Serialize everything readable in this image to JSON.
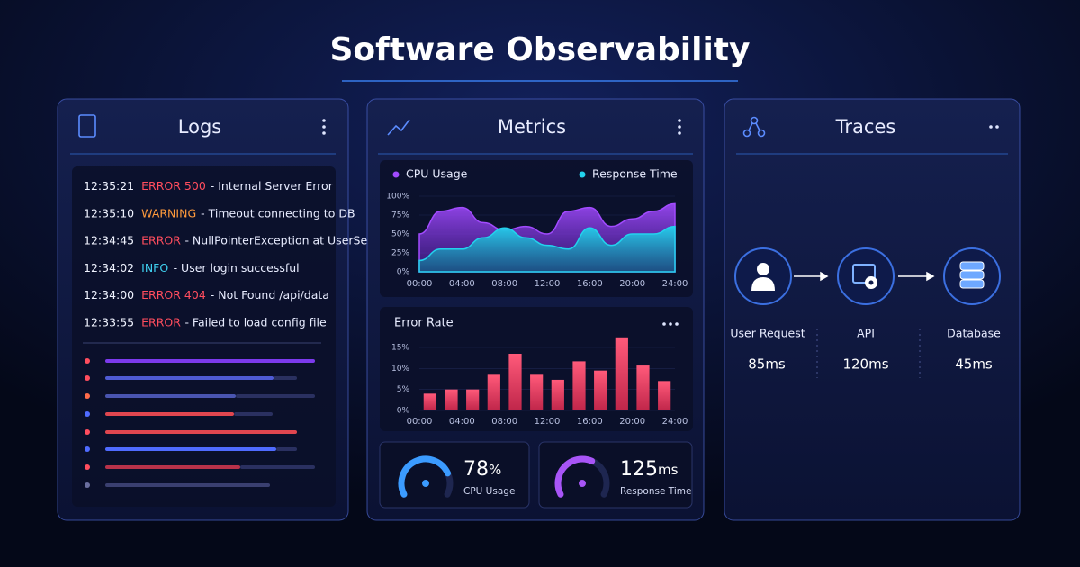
{
  "header": {
    "title": "Software Observability"
  },
  "logs": {
    "title": "Logs",
    "entries": [
      {
        "time": "12:35:21",
        "level": "ERROR 500",
        "message": "- Internal Server Error",
        "color": "#ff4d5e"
      },
      {
        "time": "12:35:10",
        "level": "WARNING",
        "message": "- Timeout connecting to DB",
        "color": "#ff9a3c"
      },
      {
        "time": "12:34:45",
        "level": "ERROR",
        "message": "- NullPointerException at UserSe",
        "color": "#ff4d5e"
      },
      {
        "time": "12:34:02",
        "level": "INFO",
        "message": "- User login successful",
        "color": "#3fd0f0"
      },
      {
        "time": "12:34:00",
        "level": "ERROR 404",
        "message": "- Not Found  /api/data",
        "color": "#ff4d5e"
      },
      {
        "time": "12:33:55",
        "level": "ERROR",
        "message": "- Failed to load config file",
        "color": "#ff4d5e"
      }
    ]
  },
  "metrics": {
    "title": "Metrics"
  },
  "chart_data": [
    {
      "type": "area",
      "x": [
        0,
        2,
        4,
        6,
        8,
        10,
        12,
        14,
        16,
        18,
        20,
        22,
        24
      ],
      "series": [
        {
          "name": "CPU Usage",
          "color": "#a24bff",
          "values": [
            50,
            80,
            85,
            65,
            55,
            60,
            50,
            80,
            85,
            60,
            70,
            80,
            90
          ]
        },
        {
          "name": "Response Time",
          "color": "#22d3ee",
          "values": [
            15,
            30,
            30,
            45,
            58,
            45,
            35,
            30,
            58,
            35,
            50,
            50,
            60
          ]
        }
      ],
      "xlim": [
        0,
        24
      ],
      "xticks": [
        {
          "value": 0,
          "label": "00:00"
        },
        {
          "value": 4,
          "label": "04:00"
        },
        {
          "value": 8,
          "label": "08:00"
        },
        {
          "value": 12,
          "label": "12:00"
        },
        {
          "value": 16,
          "label": "16:00"
        },
        {
          "value": 20,
          "label": "20:00"
        },
        {
          "value": 24,
          "label": "24:00"
        }
      ],
      "ylim": [
        0,
        100
      ],
      "yticks": [
        {
          "value": 0,
          "label": "0%"
        },
        {
          "value": 25,
          "label": "25%"
        },
        {
          "value": 50,
          "label": "50%"
        },
        {
          "value": 75,
          "label": "75%"
        },
        {
          "value": 100,
          "label": "100%"
        }
      ]
    },
    {
      "type": "bar",
      "title": "Error Rate",
      "color": "#ff4d6d",
      "categories": [
        null,
        null,
        null,
        null,
        null,
        null,
        null,
        null,
        null,
        null,
        null,
        null
      ],
      "values": [
        4,
        5,
        5,
        8.5,
        13.5,
        8.5,
        7.3,
        11.7,
        9.5,
        17.4,
        10.7,
        7
      ],
      "ylim": [
        0,
        17.5
      ],
      "yticks": [
        {
          "value": 0,
          "label": "0%"
        },
        {
          "value": 5,
          "label": "5%"
        },
        {
          "value": 10,
          "label": "10%"
        },
        {
          "value": 15,
          "label": "15%"
        }
      ],
      "xticks": [
        "00:00",
        "04:00",
        "08:00",
        "12:00",
        "16:00",
        "20:00",
        "24:00"
      ]
    }
  ],
  "gauges": [
    {
      "value": 78,
      "unit": "%",
      "label": "CPU Usage",
      "color": "#3b9bff"
    },
    {
      "value": 125,
      "unit": "ms",
      "label": "Response Time",
      "color": "#a855f7"
    }
  ],
  "traces": {
    "title": "Traces",
    "nodes": [
      {
        "label": "User Request",
        "duration": "85ms"
      },
      {
        "label": "API",
        "duration": "120ms"
      },
      {
        "label": "Database",
        "duration": "45ms"
      }
    ]
  }
}
